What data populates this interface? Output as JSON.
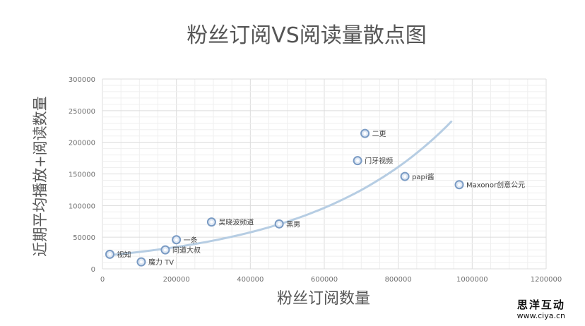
{
  "chart_data": {
    "type": "scatter",
    "title": "粉丝订阅VS阅读量散点图",
    "xlabel": "粉丝订阅数量",
    "ylabel": "近期平均播放+阅读数量",
    "xlim": [
      0,
      1200000
    ],
    "ylim": [
      0,
      300000
    ],
    "x_ticks": [
      0,
      200000,
      400000,
      600000,
      800000,
      1000000,
      1200000
    ],
    "y_ticks": [
      0,
      50000,
      100000,
      150000,
      200000,
      250000,
      300000
    ],
    "x_tick_labels": [
      "0",
      "200000",
      "400000",
      "600000",
      "800000",
      "1000000",
      "1200000"
    ],
    "y_tick_labels": [
      "0",
      "50000",
      "100000",
      "150000",
      "200000",
      "250000",
      "300000"
    ],
    "grid": true,
    "trendline": "exponential",
    "points": [
      {
        "label": "视知",
        "x": 20000,
        "y": 23000
      },
      {
        "label": "魔力 TV",
        "x": 105000,
        "y": 11000
      },
      {
        "label": "同道大叔",
        "x": 170000,
        "y": 30000
      },
      {
        "label": "一条",
        "x": 200000,
        "y": 46000
      },
      {
        "label": "吴晓波频道",
        "x": 295000,
        "y": 74000
      },
      {
        "label": "黑男",
        "x": 478000,
        "y": 71000
      },
      {
        "label": "门牙视频",
        "x": 690000,
        "y": 171000
      },
      {
        "label": "二更",
        "x": 710000,
        "y": 214000
      },
      {
        "label": "papi酱",
        "x": 818000,
        "y": 146000
      },
      {
        "label": "Maxonor创意公元",
        "x": 965000,
        "y": 133000
      }
    ]
  },
  "colors": {
    "marker_stroke": "#7a9bc4",
    "marker_fill": "#dfe8f4",
    "trendline": "#b6cde3",
    "grid": "#e8e8e8",
    "text": "#555555"
  },
  "watermark": {
    "name": "思洋互动",
    "url": "www.ciya.cn"
  }
}
